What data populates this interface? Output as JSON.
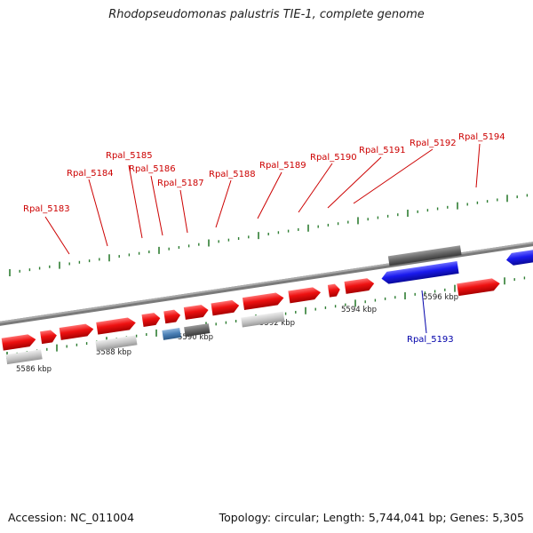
{
  "title": "Rhodopseudomonas palustris TIE-1, complete genome",
  "footer": {
    "accession": "Accession: NC_011004",
    "summary": "Topology: circular; Length: 5,744,041 bp; Genes: 5,305"
  },
  "colors": {
    "gene_forward": "#ee1111",
    "gene_reverse": "#1a1aee",
    "rna": "#4a7fb5",
    "feature_light": "#c8c8c8",
    "feature_dark": "#666666",
    "backbone": "#888888",
    "tick_major": "#2e7d32",
    "label_forward": "#cc0000",
    "label_reverse": "#0000aa"
  },
  "ruler": {
    "labels": [
      {
        "kbp": 5586,
        "text": "5586 kbp"
      },
      {
        "kbp": 5588,
        "text": "5588 kbp"
      },
      {
        "kbp": 5590,
        "text": "5590 kbp"
      },
      {
        "kbp": 5592,
        "text": "5592 kbp"
      },
      {
        "kbp": 5594,
        "text": "5594 kbp"
      },
      {
        "kbp": 5596,
        "text": "5596 kbp"
      }
    ]
  },
  "gene_labels": [
    {
      "name": "Rpal_5183",
      "strand": "forward"
    },
    {
      "name": "Rpal_5184",
      "strand": "forward"
    },
    {
      "name": "Rpal_5185",
      "strand": "forward"
    },
    {
      "name": "Rpal_5186",
      "strand": "forward"
    },
    {
      "name": "Rpal_5187",
      "strand": "forward"
    },
    {
      "name": "Rpal_5188",
      "strand": "forward"
    },
    {
      "name": "Rpal_5189",
      "strand": "forward"
    },
    {
      "name": "Rpal_5190",
      "strand": "forward"
    },
    {
      "name": "Rpal_5191",
      "strand": "forward"
    },
    {
      "name": "Rpal_5192",
      "strand": "forward"
    },
    {
      "name": "Rpal_5194",
      "strand": "forward"
    },
    {
      "name": "Rpal_5193",
      "strand": "reverse"
    }
  ]
}
